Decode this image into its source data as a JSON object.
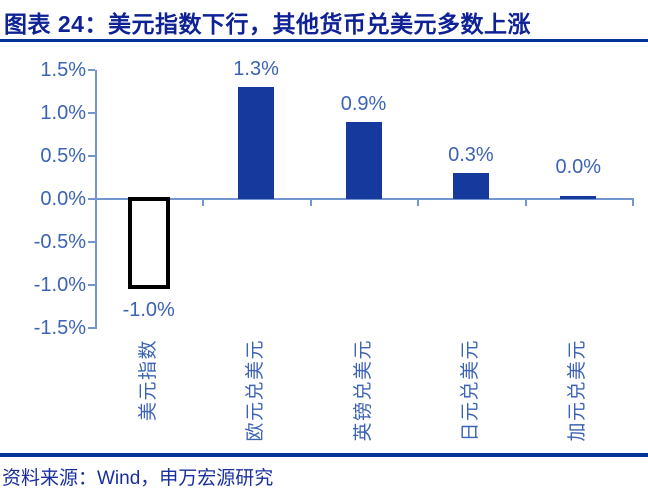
{
  "header": {
    "title": "图表 24：美元指数下行，其他货币兑美元多数上涨"
  },
  "footer": {
    "source": "资料来源：Wind，申万宏源研究"
  },
  "chart_data": {
    "type": "bar",
    "title": "图表 24：美元指数下行，其他货币兑美元多数上涨",
    "categories": [
      "美元指数",
      "欧元兑美元",
      "英镑兑美元",
      "日元兑美元",
      "加元兑美元"
    ],
    "values": [
      -1.0,
      1.3,
      0.9,
      0.3,
      0.0
    ],
    "data_labels": [
      "-1.0%",
      "1.3%",
      "0.9%",
      "0.3%",
      "0.0%"
    ],
    "bar_styles": [
      "hollow",
      "solid",
      "solid",
      "solid",
      "solid"
    ],
    "y_ticks": [
      "1.5%",
      "1.0%",
      "0.5%",
      "0.0%",
      "-0.5%",
      "-1.0%",
      "-1.5%"
    ],
    "ylim": [
      -1.5,
      1.5
    ],
    "grid": false,
    "legend": "none",
    "colors": {
      "bar_fill": "#16399E",
      "hollow_border": "#000000",
      "axis_line": "#7396D0",
      "tick_label": "#3C63B4",
      "title_navy": "#0E2296",
      "rule_navy": "#003399",
      "source_navy": "#1A2F9E"
    }
  }
}
